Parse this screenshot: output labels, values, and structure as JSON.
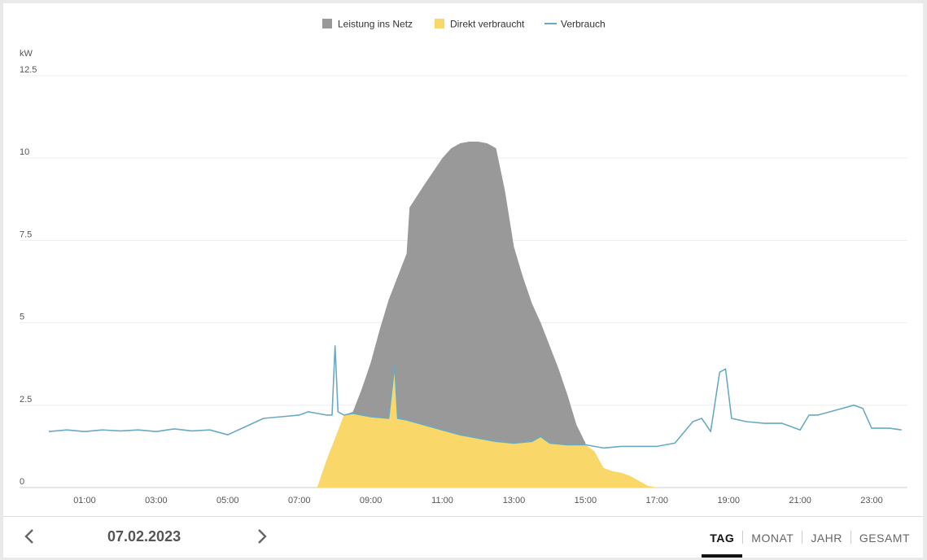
{
  "chart_data": {
    "type": "area",
    "y_unit": "kW",
    "ylim": [
      0,
      12.5
    ],
    "y_ticks": [
      "0",
      "2.5",
      "5",
      "7.5",
      "10",
      "12.5"
    ],
    "y_tick_values": [
      0,
      2.5,
      5,
      7.5,
      10,
      12.5
    ],
    "x_ticks": [
      "01:00",
      "03:00",
      "05:00",
      "07:00",
      "09:00",
      "11:00",
      "13:00",
      "15:00",
      "17:00",
      "19:00",
      "21:00",
      "23:00"
    ],
    "xlim": [
      "00:00",
      "24:00"
    ],
    "grid": true,
    "legend_position": "top-center",
    "series": [
      {
        "name": "Leistung ins Netz",
        "type": "area",
        "color": "#999999",
        "points": [
          [
            "08:15",
            2.2
          ],
          [
            "08:30",
            2.3
          ],
          [
            "08:45",
            3.0
          ],
          [
            "09:00",
            3.8
          ],
          [
            "09:15",
            4.8
          ],
          [
            "09:30",
            5.7
          ],
          [
            "09:45",
            6.4
          ],
          [
            "10:00",
            7.1
          ],
          [
            "10:05",
            8.5
          ],
          [
            "10:30",
            9.2
          ],
          [
            "10:45",
            9.6
          ],
          [
            "11:00",
            10.0
          ],
          [
            "11:15",
            10.3
          ],
          [
            "11:30",
            10.45
          ],
          [
            "11:45",
            10.5
          ],
          [
            "12:00",
            10.5
          ],
          [
            "12:15",
            10.45
          ],
          [
            "12:30",
            10.3
          ],
          [
            "12:45",
            9.0
          ],
          [
            "13:00",
            7.3
          ],
          [
            "13:15",
            6.4
          ],
          [
            "13:30",
            5.6
          ],
          [
            "13:45",
            5.0
          ],
          [
            "14:00",
            4.3
          ],
          [
            "14:15",
            3.6
          ],
          [
            "14:30",
            2.8
          ],
          [
            "14:45",
            1.9
          ],
          [
            "15:00",
            1.35
          ]
        ]
      },
      {
        "name": "Direkt verbraucht",
        "type": "area",
        "color": "#f9d769",
        "points": [
          [
            "07:30",
            0.0
          ],
          [
            "07:45",
            0.8
          ],
          [
            "08:00",
            1.5
          ],
          [
            "08:15",
            2.2
          ],
          [
            "08:30",
            2.25
          ],
          [
            "09:00",
            2.15
          ],
          [
            "09:30",
            2.1
          ],
          [
            "09:40",
            3.7
          ],
          [
            "09:45",
            2.1
          ],
          [
            "10:00",
            2.05
          ],
          [
            "10:30",
            1.9
          ],
          [
            "11:00",
            1.75
          ],
          [
            "11:30",
            1.6
          ],
          [
            "12:00",
            1.5
          ],
          [
            "12:30",
            1.4
          ],
          [
            "13:00",
            1.35
          ],
          [
            "13:30",
            1.4
          ],
          [
            "13:45",
            1.55
          ],
          [
            "14:00",
            1.35
          ],
          [
            "14:30",
            1.3
          ],
          [
            "15:00",
            1.3
          ],
          [
            "15:15",
            1.1
          ],
          [
            "15:30",
            0.6
          ],
          [
            "15:45",
            0.5
          ],
          [
            "16:00",
            0.45
          ],
          [
            "16:15",
            0.35
          ],
          [
            "16:30",
            0.2
          ],
          [
            "16:45",
            0.05
          ],
          [
            "17:00",
            0.0
          ]
        ]
      },
      {
        "name": "Verbrauch",
        "type": "line",
        "color": "#6aa9c4",
        "points": [
          [
            "00:00",
            1.7
          ],
          [
            "00:30",
            1.75
          ],
          [
            "01:00",
            1.7
          ],
          [
            "01:30",
            1.75
          ],
          [
            "02:00",
            1.72
          ],
          [
            "02:30",
            1.75
          ],
          [
            "03:00",
            1.7
          ],
          [
            "03:30",
            1.78
          ],
          [
            "04:00",
            1.72
          ],
          [
            "04:30",
            1.75
          ],
          [
            "05:00",
            1.6
          ],
          [
            "05:30",
            1.85
          ],
          [
            "06:00",
            2.1
          ],
          [
            "06:30",
            2.15
          ],
          [
            "07:00",
            2.2
          ],
          [
            "07:15",
            2.3
          ],
          [
            "07:30",
            2.25
          ],
          [
            "07:45",
            2.2
          ],
          [
            "07:55",
            2.2
          ],
          [
            "08:00",
            4.3
          ],
          [
            "08:05",
            2.3
          ],
          [
            "08:15",
            2.2
          ],
          [
            "08:30",
            2.25
          ],
          [
            "09:00",
            2.15
          ],
          [
            "09:30",
            2.1
          ],
          [
            "09:40",
            3.7
          ],
          [
            "09:45",
            2.1
          ],
          [
            "10:00",
            2.05
          ],
          [
            "10:30",
            1.9
          ],
          [
            "11:00",
            1.75
          ],
          [
            "11:30",
            1.6
          ],
          [
            "12:00",
            1.5
          ],
          [
            "12:30",
            1.4
          ],
          [
            "13:00",
            1.35
          ],
          [
            "13:30",
            1.4
          ],
          [
            "13:45",
            1.55
          ],
          [
            "14:00",
            1.35
          ],
          [
            "14:30",
            1.3
          ],
          [
            "15:00",
            1.3
          ],
          [
            "15:30",
            1.2
          ],
          [
            "16:00",
            1.25
          ],
          [
            "16:30",
            1.25
          ],
          [
            "17:00",
            1.25
          ],
          [
            "17:30",
            1.35
          ],
          [
            "18:00",
            2.0
          ],
          [
            "18:15",
            2.1
          ],
          [
            "18:30",
            1.7
          ],
          [
            "18:45",
            3.5
          ],
          [
            "18:55",
            3.6
          ],
          [
            "19:05",
            2.1
          ],
          [
            "19:30",
            2.0
          ],
          [
            "20:00",
            1.95
          ],
          [
            "20:30",
            1.95
          ],
          [
            "21:00",
            1.75
          ],
          [
            "21:15",
            2.2
          ],
          [
            "21:30",
            2.2
          ],
          [
            "22:00",
            2.35
          ],
          [
            "22:30",
            2.5
          ],
          [
            "22:45",
            2.4
          ],
          [
            "23:00",
            1.8
          ],
          [
            "23:30",
            1.8
          ],
          [
            "23:50",
            1.75
          ]
        ]
      }
    ]
  },
  "legend": [
    {
      "label": "Leistung ins Netz",
      "color": "#999999",
      "marker": "square"
    },
    {
      "label": "Direkt verbraucht",
      "color": "#f9d769",
      "marker": "square"
    },
    {
      "label": "Verbrauch",
      "color": "#6aa9c4",
      "marker": "line"
    }
  ],
  "footer": {
    "date": "07.02.2023",
    "prev_icon": "chevron-left-icon",
    "next_icon": "chevron-right-icon",
    "tabs": [
      {
        "label": "TAG",
        "active": true
      },
      {
        "label": "MONAT",
        "active": false
      },
      {
        "label": "JAHR",
        "active": false
      },
      {
        "label": "GESAMT",
        "active": false
      }
    ]
  }
}
